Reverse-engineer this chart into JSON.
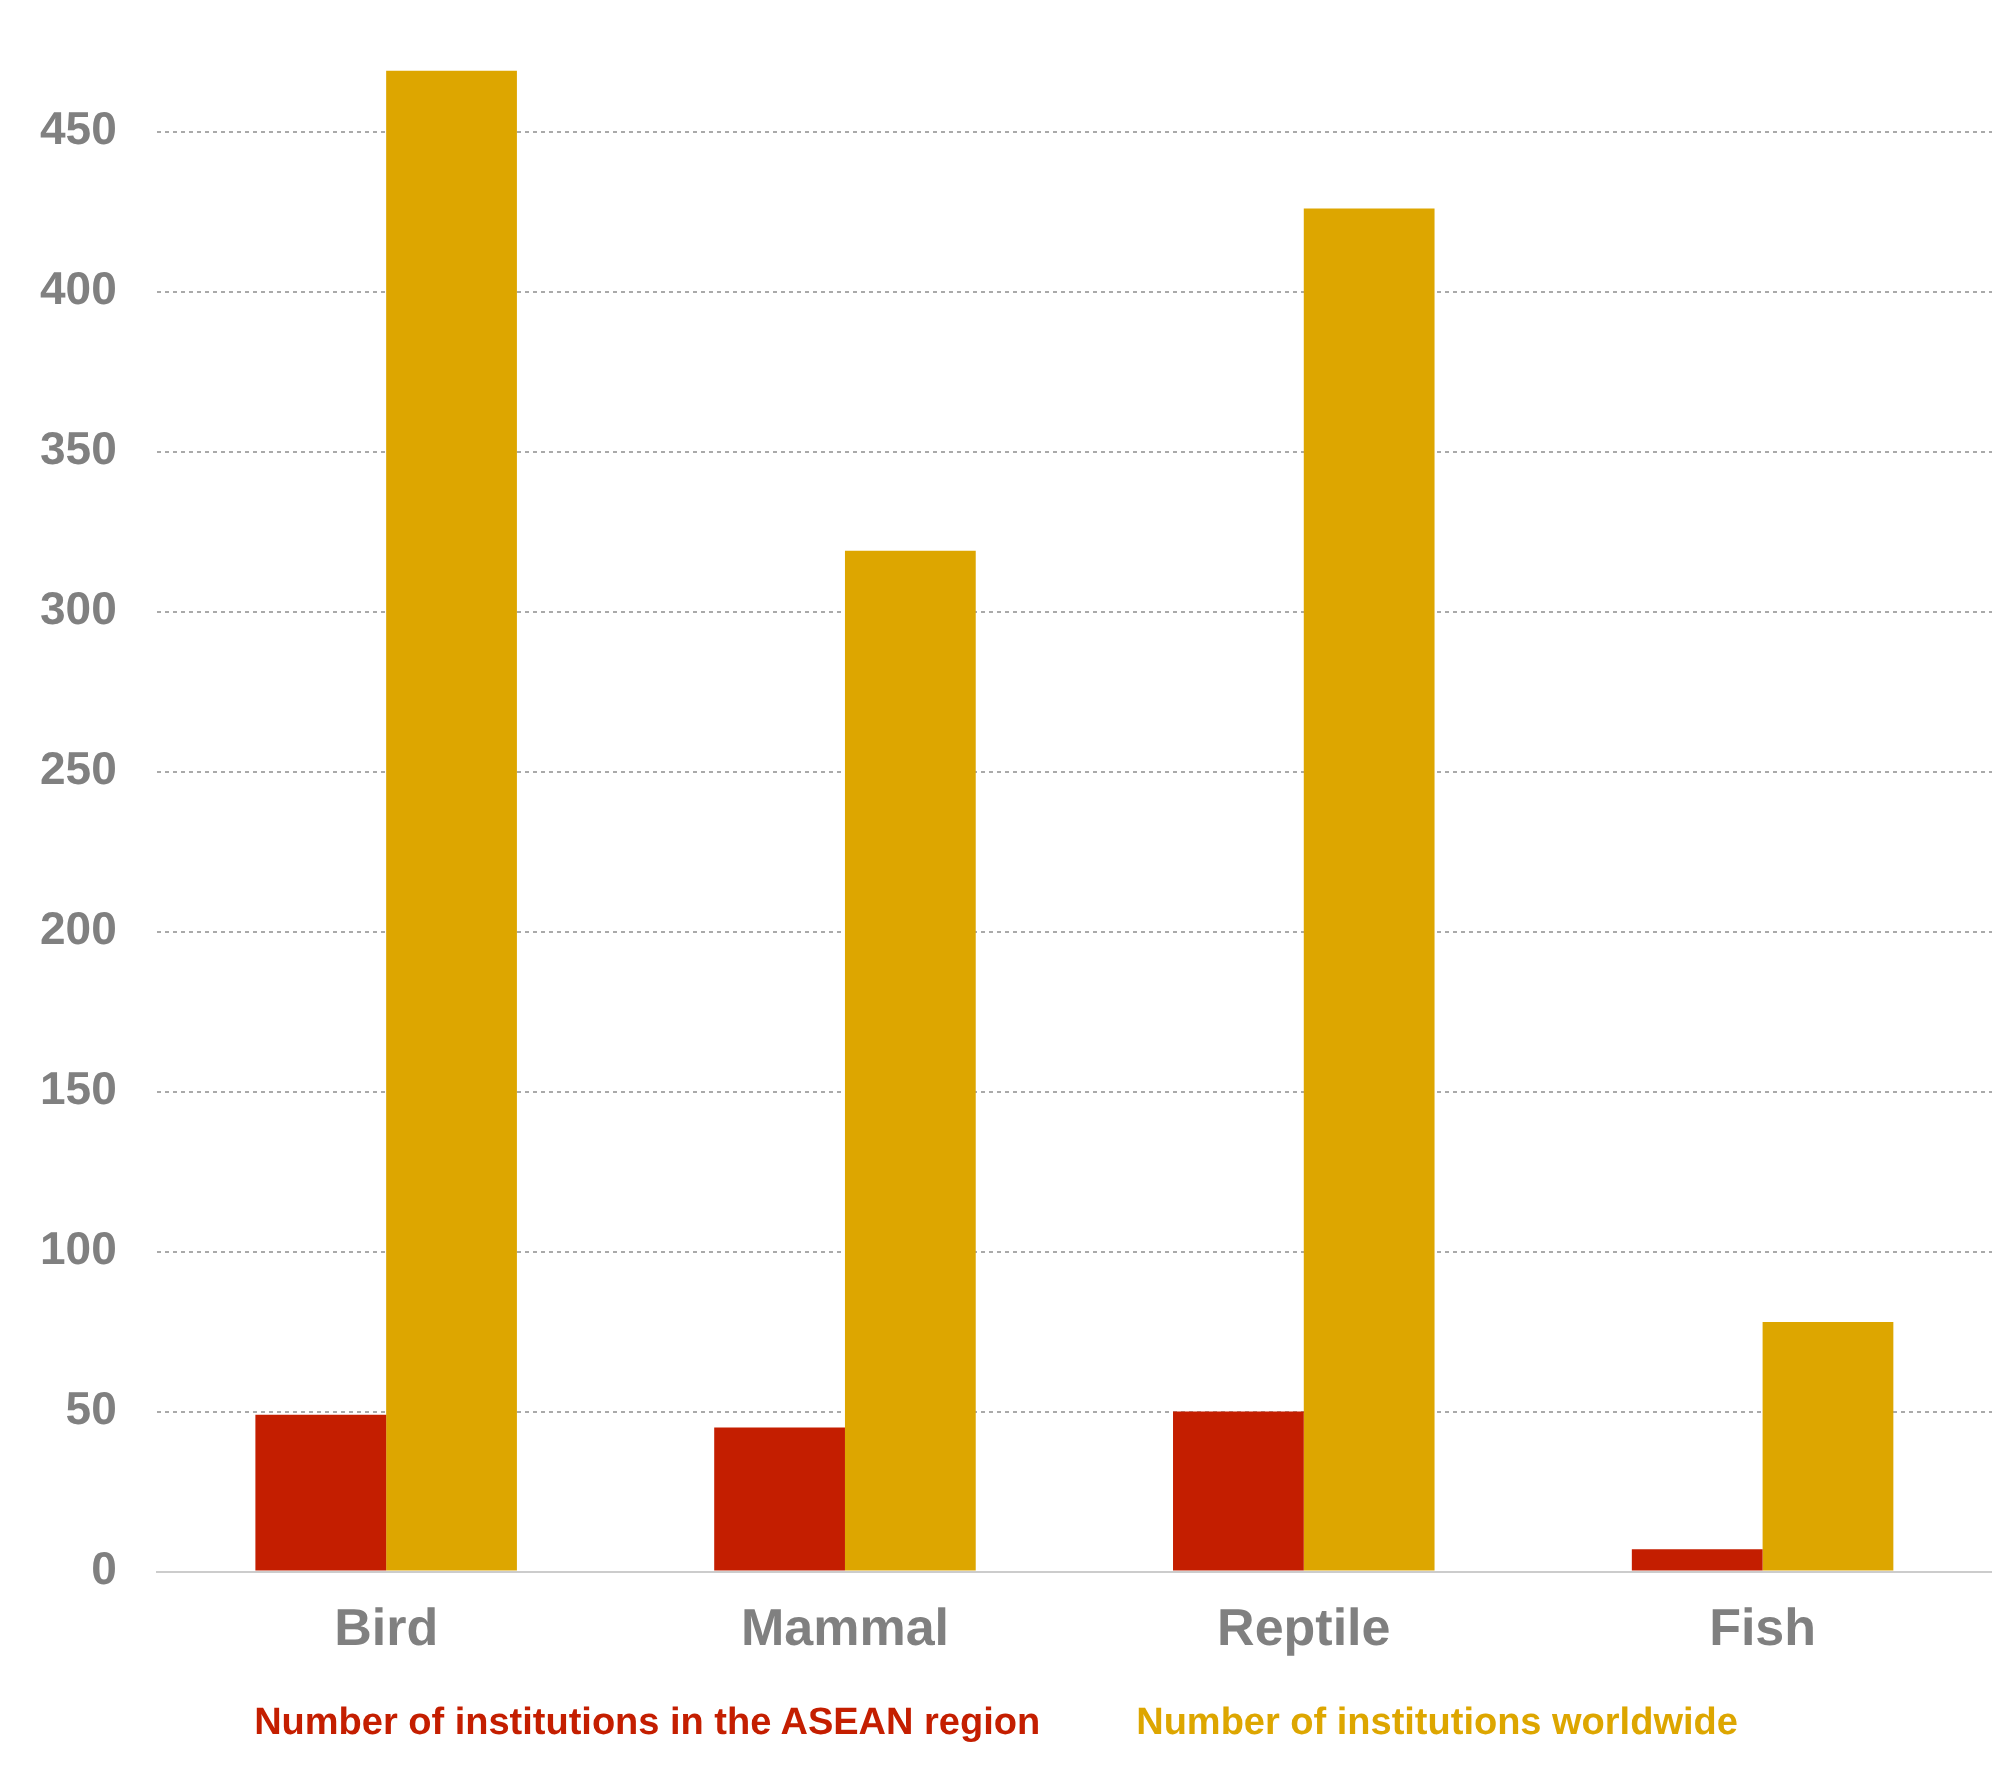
{
  "chart_data": {
    "type": "bar",
    "categories": [
      "Bird",
      "Mammal",
      "Reptile",
      "Fish"
    ],
    "series": [
      {
        "name": "Number of institutions in the ASEAN region",
        "color": "#c41e00",
        "values": [
          49,
          45,
          50,
          7
        ]
      },
      {
        "name": "Number of institutions worldwide",
        "color": "#dda600",
        "values": [
          469,
          319,
          426,
          78
        ]
      }
    ],
    "ylim": [
      0,
      470
    ],
    "yticks": [
      0,
      50,
      100,
      150,
      200,
      250,
      300,
      350,
      400,
      450
    ],
    "grid": "y",
    "legend": "bottom"
  }
}
